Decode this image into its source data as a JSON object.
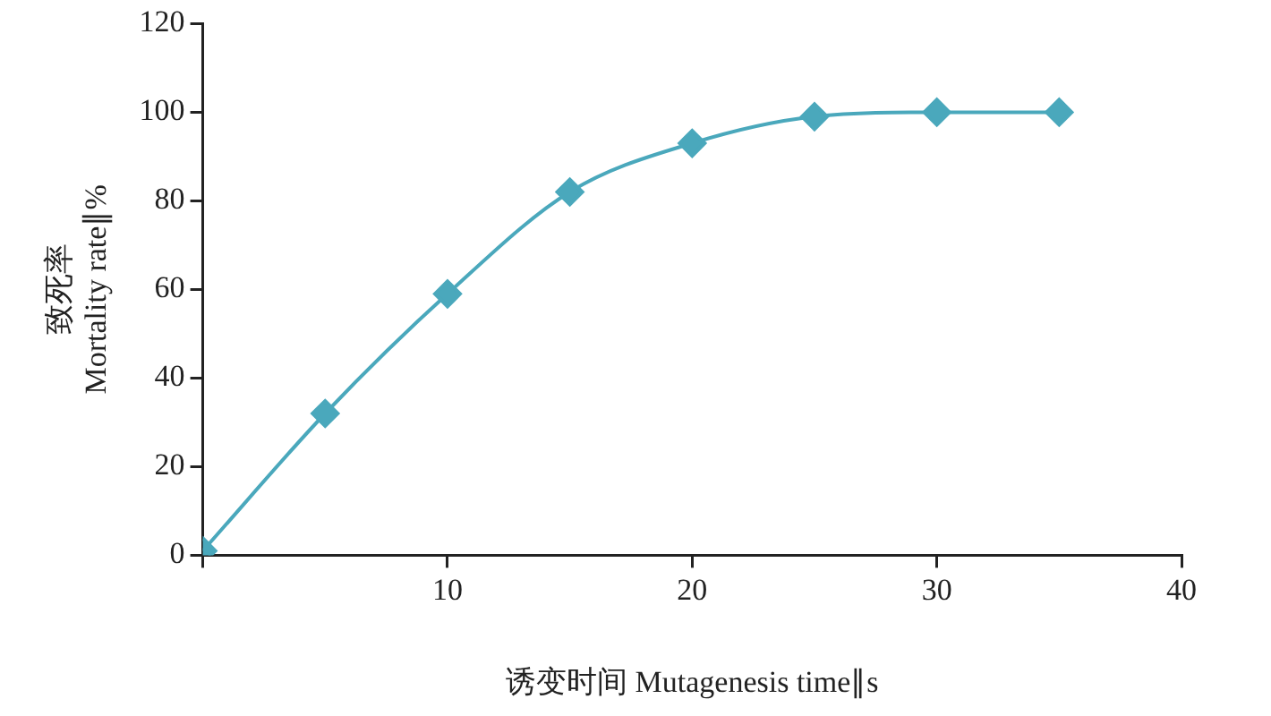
{
  "chart_data": {
    "type": "line",
    "xlabel": "诱变时间 Mutagenesis time∥s",
    "ylabel": "致死率\nMortality rate∥%",
    "x": [
      0,
      5,
      10,
      15,
      20,
      25,
      30,
      35
    ],
    "series": [
      {
        "color": "#4aa8bc",
        "values": [
          1,
          32,
          59,
          82,
          93,
          99,
          100,
          100
        ]
      }
    ],
    "xlim": [
      0,
      40
    ],
    "xticks": [
      {
        "value": 0,
        "label": null
      },
      10,
      20,
      30,
      40
    ],
    "ylim": [
      0,
      120
    ],
    "yticks": [
      0,
      20,
      40,
      60,
      80,
      100,
      120
    ],
    "grid": false,
    "legend": false,
    "marker": "diamond",
    "line_style": "solid"
  }
}
